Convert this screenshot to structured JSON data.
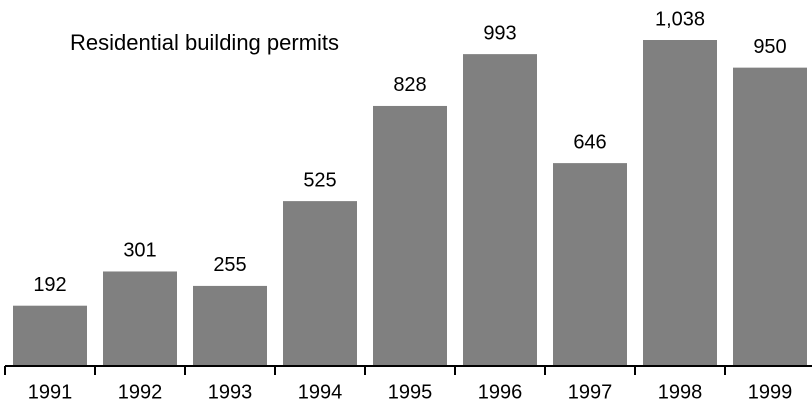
{
  "chart_data": {
    "type": "bar",
    "title": "Residential building permits",
    "categories": [
      "1991",
      "1992",
      "1993",
      "1994",
      "1995",
      "1996",
      "1997",
      "1998",
      "1999"
    ],
    "values": [
      192,
      301,
      255,
      525,
      828,
      993,
      646,
      1038,
      950
    ],
    "value_labels": [
      "192",
      "301",
      "255",
      "525",
      "828",
      "993",
      "646",
      "1,038",
      "950"
    ],
    "color": "#808080"
  }
}
